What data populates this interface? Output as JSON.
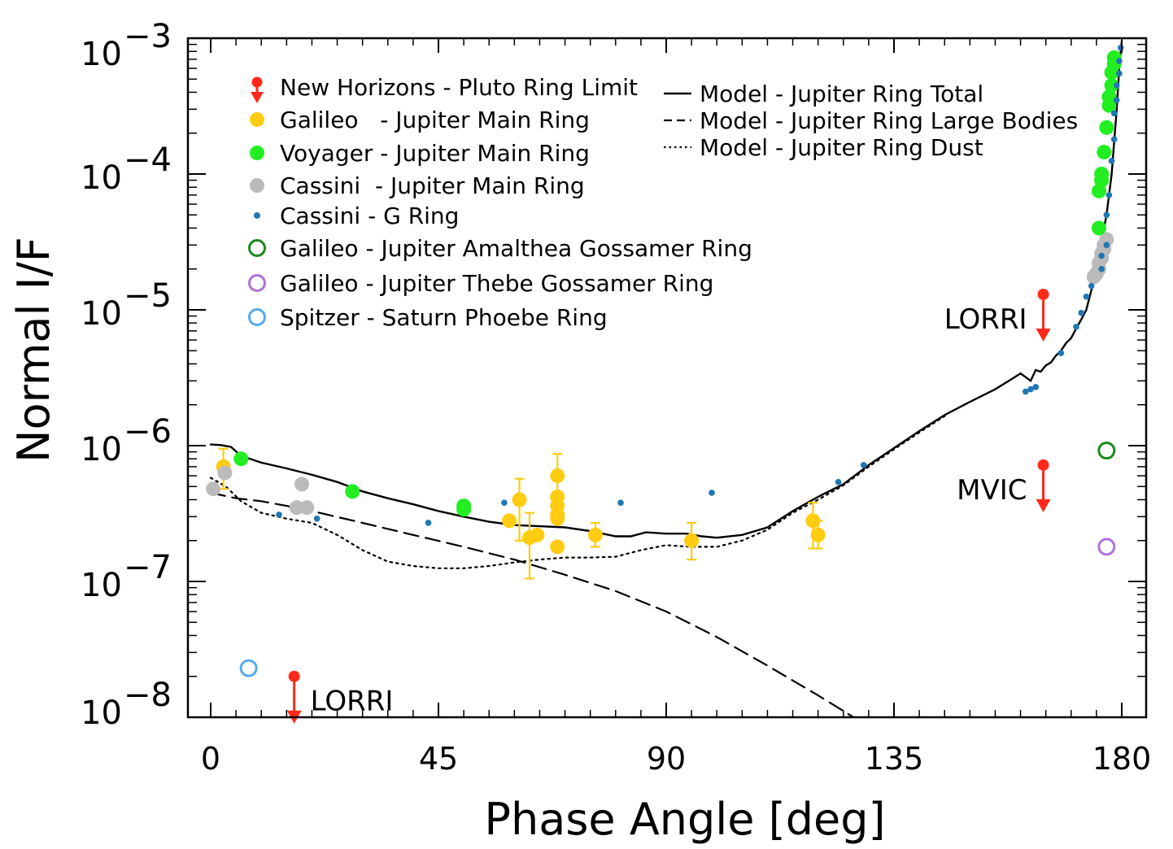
{
  "chart_data": {
    "type": "scatter",
    "xlabel": "Phase Angle [deg]",
    "ylabel": "Normal I/F",
    "xlim": [
      -5,
      184
    ],
    "ylim": [
      1e-08,
      0.001
    ],
    "yscale": "log",
    "xticks": [
      0,
      45,
      90,
      135,
      180
    ],
    "yticks": [
      {
        "value": 0.001,
        "base": "10",
        "exp": "−3"
      },
      {
        "value": 0.0001,
        "base": "10",
        "exp": "−4"
      },
      {
        "value": 1e-05,
        "base": "10",
        "exp": "−5"
      },
      {
        "value": 1e-06,
        "base": "10",
        "exp": "−6"
      },
      {
        "value": 1e-07,
        "base": "10",
        "exp": "−7"
      },
      {
        "value": 1e-08,
        "base": "10",
        "exp": "−8"
      }
    ],
    "legend_position": "top-left",
    "colors": {
      "new_horizons": "#ff2a1a",
      "galileo": "#ffcc11",
      "voyager": "#22ee22",
      "cassini": "#bbbbbb",
      "cassini_g": "#1f77b4",
      "amalthea": "#1a8a1a",
      "thebe": "#b070dd",
      "spitzer": "#55aaee"
    },
    "legend_markers": [
      {
        "label": "New Horizons - Pluto Ring Limit",
        "key": "new_horizons",
        "style": "limit"
      },
      {
        "label": "Galileo   - Jupiter Main Ring",
        "key": "galileo",
        "style": "dot"
      },
      {
        "label": "Voyager - Jupiter Main Ring",
        "key": "voyager",
        "style": "dot"
      },
      {
        "label": "Cassini  - Jupiter Main Ring",
        "key": "cassini",
        "style": "dot"
      },
      {
        "label": "Cassini - G Ring",
        "key": "cassini_g",
        "style": "small"
      },
      {
        "label": "Galileo - Jupiter Amalthea Gossamer Ring",
        "key": "amalthea",
        "style": "ring"
      },
      {
        "label": "Galileo - Jupiter Thebe Gossamer Ring",
        "key": "thebe",
        "style": "ring"
      },
      {
        "label": "Spitzer - Saturn Phoebe Ring",
        "key": "spitzer",
        "style": "ring"
      }
    ],
    "legend_lines": [
      {
        "label": "Model - Jupiter Ring Total",
        "style": "solid"
      },
      {
        "label": "Model - Jupiter Ring Large Bodies",
        "style": "dashed"
      },
      {
        "label": "Model - Jupiter Ring Dust",
        "style": "dotted"
      }
    ],
    "series": [
      {
        "key": "galileo",
        "style": "dot",
        "points": [
          {
            "x": 2.5,
            "y": 7e-07,
            "lo": 4.8e-07,
            "hi": 9.5e-07
          },
          {
            "x": 59,
            "y": 2.8e-07
          },
          {
            "x": 61,
            "y": 4e-07,
            "lo": 2e-07,
            "hi": 5.7e-07
          },
          {
            "x": 63,
            "y": 2.1e-07,
            "lo": 1.05e-07,
            "hi": 3.2e-07
          },
          {
            "x": 64.5,
            "y": 2.2e-07
          },
          {
            "x": 68.5,
            "y": 6e-07,
            "lo": 4e-07,
            "hi": 8.7e-07
          },
          {
            "x": 68.5,
            "y": 4.2e-07
          },
          {
            "x": 68.5,
            "y": 3.6e-07
          },
          {
            "x": 68.5,
            "y": 3.1e-07
          },
          {
            "x": 68.5,
            "y": 2.9e-07
          },
          {
            "x": 68.5,
            "y": 1.8e-07
          },
          {
            "x": 76,
            "y": 2.2e-07,
            "lo": 1.8e-07,
            "hi": 2.7e-07
          },
          {
            "x": 95,
            "y": 2e-07,
            "lo": 1.45e-07,
            "hi": 2.7e-07
          },
          {
            "x": 119,
            "y": 2.8e-07,
            "lo": 1.75e-07,
            "hi": 3.8e-07
          },
          {
            "x": 120,
            "y": 2.2e-07,
            "lo": 1.75e-07,
            "hi": 2.8e-07
          }
        ]
      },
      {
        "key": "cassini",
        "style": "dot",
        "points": [
          {
            "x": 0.5,
            "y": 4.8e-07
          },
          {
            "x": 2.8,
            "y": 6.3e-07
          },
          {
            "x": 17,
            "y": 3.5e-07
          },
          {
            "x": 18,
            "y": 5.2e-07
          },
          {
            "x": 19,
            "y": 3.5e-07
          },
          {
            "x": 174.5,
            "y": 1.75e-05
          },
          {
            "x": 175,
            "y": 1.85e-05
          },
          {
            "x": 175.5,
            "y": 2e-05
          },
          {
            "x": 175.5,
            "y": 2.2e-05
          },
          {
            "x": 176,
            "y": 2.4e-05
          },
          {
            "x": 176,
            "y": 2.6e-05
          },
          {
            "x": 176.5,
            "y": 2.8e-05
          },
          {
            "x": 176.5,
            "y": 3e-05
          },
          {
            "x": 177,
            "y": 3.3e-05
          }
        ]
      },
      {
        "key": "voyager",
        "style": "dot",
        "points": [
          {
            "x": 6,
            "y": 8e-07
          },
          {
            "x": 28,
            "y": 4.6e-07
          },
          {
            "x": 50,
            "y": 3.6e-07
          },
          {
            "x": 50,
            "y": 3.4e-07
          },
          {
            "x": 175.5,
            "y": 4e-05
          },
          {
            "x": 175.5,
            "y": 7.5e-05
          },
          {
            "x": 176,
            "y": 9e-05
          },
          {
            "x": 176,
            "y": 0.0001
          },
          {
            "x": 176.5,
            "y": 0.000145
          },
          {
            "x": 177,
            "y": 0.00022
          },
          {
            "x": 177.5,
            "y": 0.00032
          },
          {
            "x": 177.5,
            "y": 0.00037
          },
          {
            "x": 178,
            "y": 0.00045
          },
          {
            "x": 178,
            "y": 0.00056
          },
          {
            "x": 178.5,
            "y": 0.00065
          },
          {
            "x": 178.5,
            "y": 0.00072
          }
        ]
      },
      {
        "key": "cassini_g",
        "style": "small",
        "points": [
          {
            "x": 13.5,
            "y": 3.1e-07
          },
          {
            "x": 21,
            "y": 2.9e-07
          },
          {
            "x": 43,
            "y": 2.7e-07
          },
          {
            "x": 58,
            "y": 3.8e-07
          },
          {
            "x": 81,
            "y": 3.8e-07
          },
          {
            "x": 99,
            "y": 4.5e-07
          },
          {
            "x": 124,
            "y": 5.4e-07
          },
          {
            "x": 129,
            "y": 7.2e-07
          },
          {
            "x": 161,
            "y": 2.5e-06
          },
          {
            "x": 162,
            "y": 2.6e-06
          },
          {
            "x": 163,
            "y": 2.7e-06
          },
          {
            "x": 168,
            "y": 4.8e-06
          },
          {
            "x": 171,
            "y": 7.5e-06
          },
          {
            "x": 172,
            "y": 9.5e-06
          },
          {
            "x": 173,
            "y": 1.25e-05
          },
          {
            "x": 174,
            "y": 1.5e-05
          },
          {
            "x": 176,
            "y": 2e-05
          },
          {
            "x": 176,
            "y": 2.5e-05
          },
          {
            "x": 177,
            "y": 3e-05
          },
          {
            "x": 177,
            "y": 5e-05
          },
          {
            "x": 177.5,
            "y": 7e-05
          },
          {
            "x": 178,
            "y": 0.000125
          },
          {
            "x": 178.5,
            "y": 0.00018
          },
          {
            "x": 178.5,
            "y": 0.00028
          },
          {
            "x": 179,
            "y": 0.00035
          },
          {
            "x": 179,
            "y": 0.00045
          },
          {
            "x": 179.5,
            "y": 0.00055
          },
          {
            "x": 179.5,
            "y": 0.00068
          },
          {
            "x": 179.8,
            "y": 0.00085
          }
        ]
      },
      {
        "key": "amalthea",
        "style": "ring",
        "points": [
          {
            "x": 177,
            "y": 9.2e-07
          }
        ]
      },
      {
        "key": "thebe",
        "style": "ring",
        "points": [
          {
            "x": 177,
            "y": 1.8e-07
          }
        ]
      },
      {
        "key": "spitzer",
        "style": "ring",
        "points": [
          {
            "x": 7.5,
            "y": 2.3e-08
          }
        ]
      }
    ],
    "limits": [
      {
        "x": 16.5,
        "y": 2e-08,
        "label": "LORRI",
        "label_side": "right"
      },
      {
        "x": 164.5,
        "y": 1.3e-05,
        "label": "LORRI",
        "label_side": "left"
      },
      {
        "x": 164.5,
        "y": 7.2e-07,
        "label": "MVIC",
        "label_side": "left"
      }
    ],
    "models": [
      {
        "name": "total",
        "style": "solid",
        "points": [
          [
            0,
            1.02e-06
          ],
          [
            2,
            1.01e-06
          ],
          [
            4,
            9.8e-07
          ],
          [
            6,
            8.4e-07
          ],
          [
            10,
            7.5e-07
          ],
          [
            15,
            6.8e-07
          ],
          [
            20,
            6.1e-07
          ],
          [
            25,
            5.4e-07
          ],
          [
            30,
            4.6e-07
          ],
          [
            35,
            4.1e-07
          ],
          [
            40,
            3.7e-07
          ],
          [
            45,
            3.3e-07
          ],
          [
            50,
            3e-07
          ],
          [
            55,
            2.75e-07
          ],
          [
            60,
            2.6e-07
          ],
          [
            65,
            2.55e-07
          ],
          [
            70,
            2.5e-07
          ],
          [
            75,
            2.35e-07
          ],
          [
            80,
            2.15e-07
          ],
          [
            83,
            2.15e-07
          ],
          [
            86,
            2.3e-07
          ],
          [
            90,
            2.25e-07
          ],
          [
            94,
            2.25e-07
          ],
          [
            97,
            2.15e-07
          ],
          [
            100,
            2.1e-07
          ],
          [
            105,
            2.2e-07
          ],
          [
            110,
            2.5e-07
          ],
          [
            115,
            3.3e-07
          ],
          [
            120,
            4.2e-07
          ],
          [
            125,
            5.2e-07
          ],
          [
            130,
            7.2e-07
          ],
          [
            135,
            9.6e-07
          ],
          [
            140,
            1.28e-06
          ],
          [
            145,
            1.68e-06
          ],
          [
            150,
            2.1e-06
          ],
          [
            155,
            2.6e-06
          ],
          [
            158,
            3.05e-06
          ],
          [
            160,
            3.4e-06
          ],
          [
            162,
            3e-06
          ],
          [
            163,
            3.6e-06
          ],
          [
            164,
            3.5e-06
          ],
          [
            165,
            3.9e-06
          ],
          [
            166,
            4.1e-06
          ],
          [
            167,
            4.6e-06
          ],
          [
            168,
            5e-06
          ],
          [
            169,
            5.7e-06
          ],
          [
            170,
            6.2e-06
          ],
          [
            171,
            7.3e-06
          ],
          [
            172,
            8.5e-06
          ],
          [
            173,
            1e-05
          ],
          [
            174,
            1.4e-05
          ],
          [
            175,
            2e-05
          ],
          [
            176,
            3.2e-05
          ],
          [
            177,
            5e-05
          ],
          [
            178,
            0.0001
          ],
          [
            179,
            0.0003
          ],
          [
            179.5,
            0.0006
          ],
          [
            180,
            0.00095
          ]
        ]
      },
      {
        "name": "large_bodies",
        "style": "dashed",
        "points": [
          [
            0,
            4.5e-07
          ],
          [
            5,
            4.1e-07
          ],
          [
            10,
            3.9e-07
          ],
          [
            15,
            3.6e-07
          ],
          [
            20,
            3.3e-07
          ],
          [
            30,
            2.7e-07
          ],
          [
            40,
            2.2e-07
          ],
          [
            50,
            1.8e-07
          ],
          [
            60,
            1.45e-07
          ],
          [
            70,
            1.12e-07
          ],
          [
            80,
            8.5e-08
          ],
          [
            90,
            6e-08
          ],
          [
            100,
            3.9e-08
          ],
          [
            110,
            2.4e-08
          ],
          [
            120,
            1.45e-08
          ],
          [
            127,
            1e-08
          ]
        ]
      },
      {
        "name": "dust",
        "style": "dotted",
        "points": [
          [
            0,
            5.8e-07
          ],
          [
            3,
            5e-07
          ],
          [
            6,
            3.9e-07
          ],
          [
            10,
            3.2e-07
          ],
          [
            15,
            2.9e-07
          ],
          [
            20,
            2.7e-07
          ],
          [
            25,
            2.2e-07
          ],
          [
            30,
            1.7e-07
          ],
          [
            35,
            1.4e-07
          ],
          [
            40,
            1.3e-07
          ],
          [
            45,
            1.25e-07
          ],
          [
            50,
            1.25e-07
          ],
          [
            55,
            1.3e-07
          ],
          [
            60,
            1.38e-07
          ],
          [
            65,
            1.45e-07
          ],
          [
            70,
            1.5e-07
          ],
          [
            75,
            1.5e-07
          ],
          [
            80,
            1.52e-07
          ],
          [
            85,
            1.7e-07
          ],
          [
            90,
            1.85e-07
          ],
          [
            95,
            1.8e-07
          ],
          [
            100,
            1.8e-07
          ],
          [
            105,
            2e-07
          ],
          [
            110,
            2.4e-07
          ],
          [
            115,
            3.2e-07
          ],
          [
            120,
            4e-07
          ],
          [
            125,
            5.1e-07
          ],
          [
            130,
            7e-07
          ],
          [
            135,
            9.4e-07
          ],
          [
            140,
            1.25e-06
          ],
          [
            145,
            1.65e-06
          ]
        ]
      }
    ]
  }
}
